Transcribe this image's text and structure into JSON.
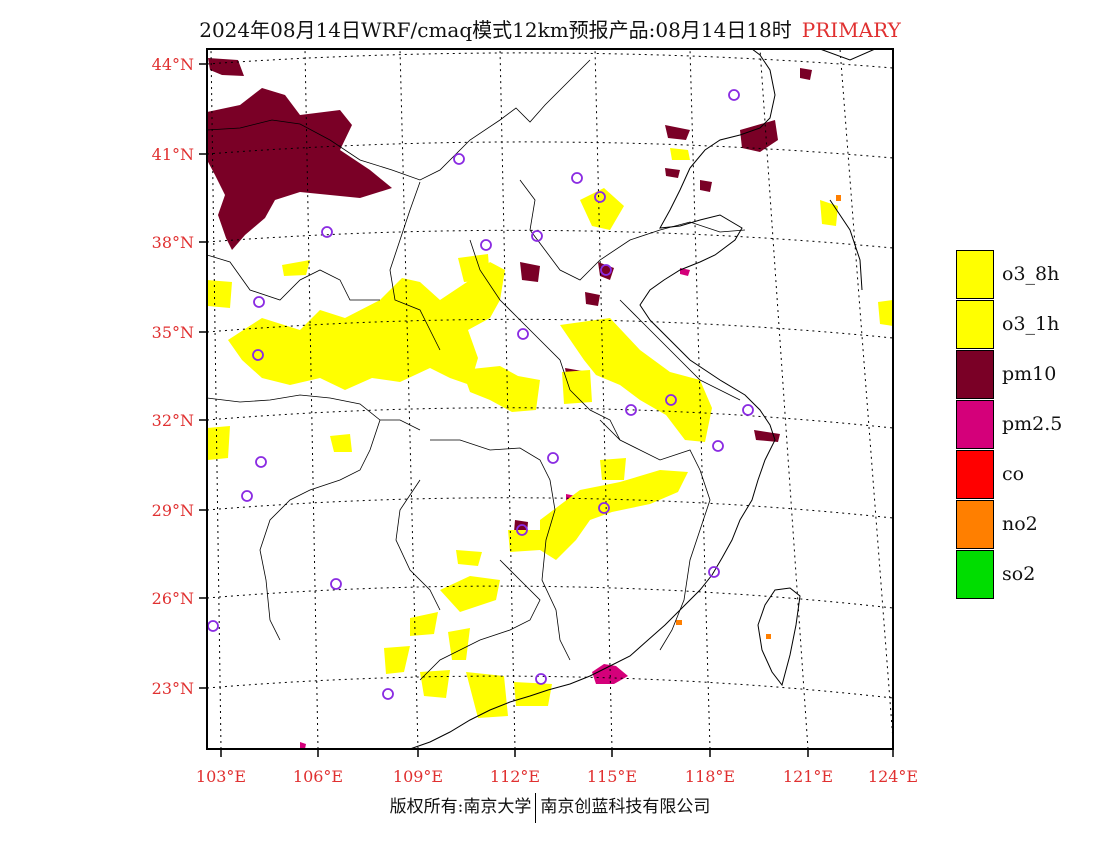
{
  "title": {
    "text": "2024年08月14日WRF/cmaq模式12km预报产品:08月14日18时",
    "tag": "PRIMARY"
  },
  "axes": {
    "lat_labels": [
      "44°N",
      "41°N",
      "38°N",
      "35°N",
      "32°N",
      "29°N",
      "26°N",
      "23°N"
    ],
    "lon_labels": [
      "103°E",
      "106°E",
      "109°E",
      "112°E",
      "115°E",
      "118°E",
      "121°E",
      "124°E"
    ]
  },
  "legend": [
    {
      "label": "o3_8h",
      "color": "#ffff00"
    },
    {
      "label": "o3_1h",
      "color": "#ffff00"
    },
    {
      "label": "pm10",
      "color": "#7a0026"
    },
    {
      "label": "pm2.5",
      "color": "#d4007a"
    },
    {
      "label": "co",
      "color": "#ff0000"
    },
    {
      "label": "no2",
      "color": "#ff7f00"
    },
    {
      "label": "so2",
      "color": "#00dd00"
    }
  ],
  "footer": {
    "left": "版权所有:南京大学",
    "right": "南京创蓝科技有限公司"
  },
  "colors": {
    "o3": "#ffff00",
    "pm10": "#7a0026",
    "pm25": "#d4007a",
    "no2": "#ff7f00",
    "station": "#8a2be2",
    "label": "#e03030"
  }
}
